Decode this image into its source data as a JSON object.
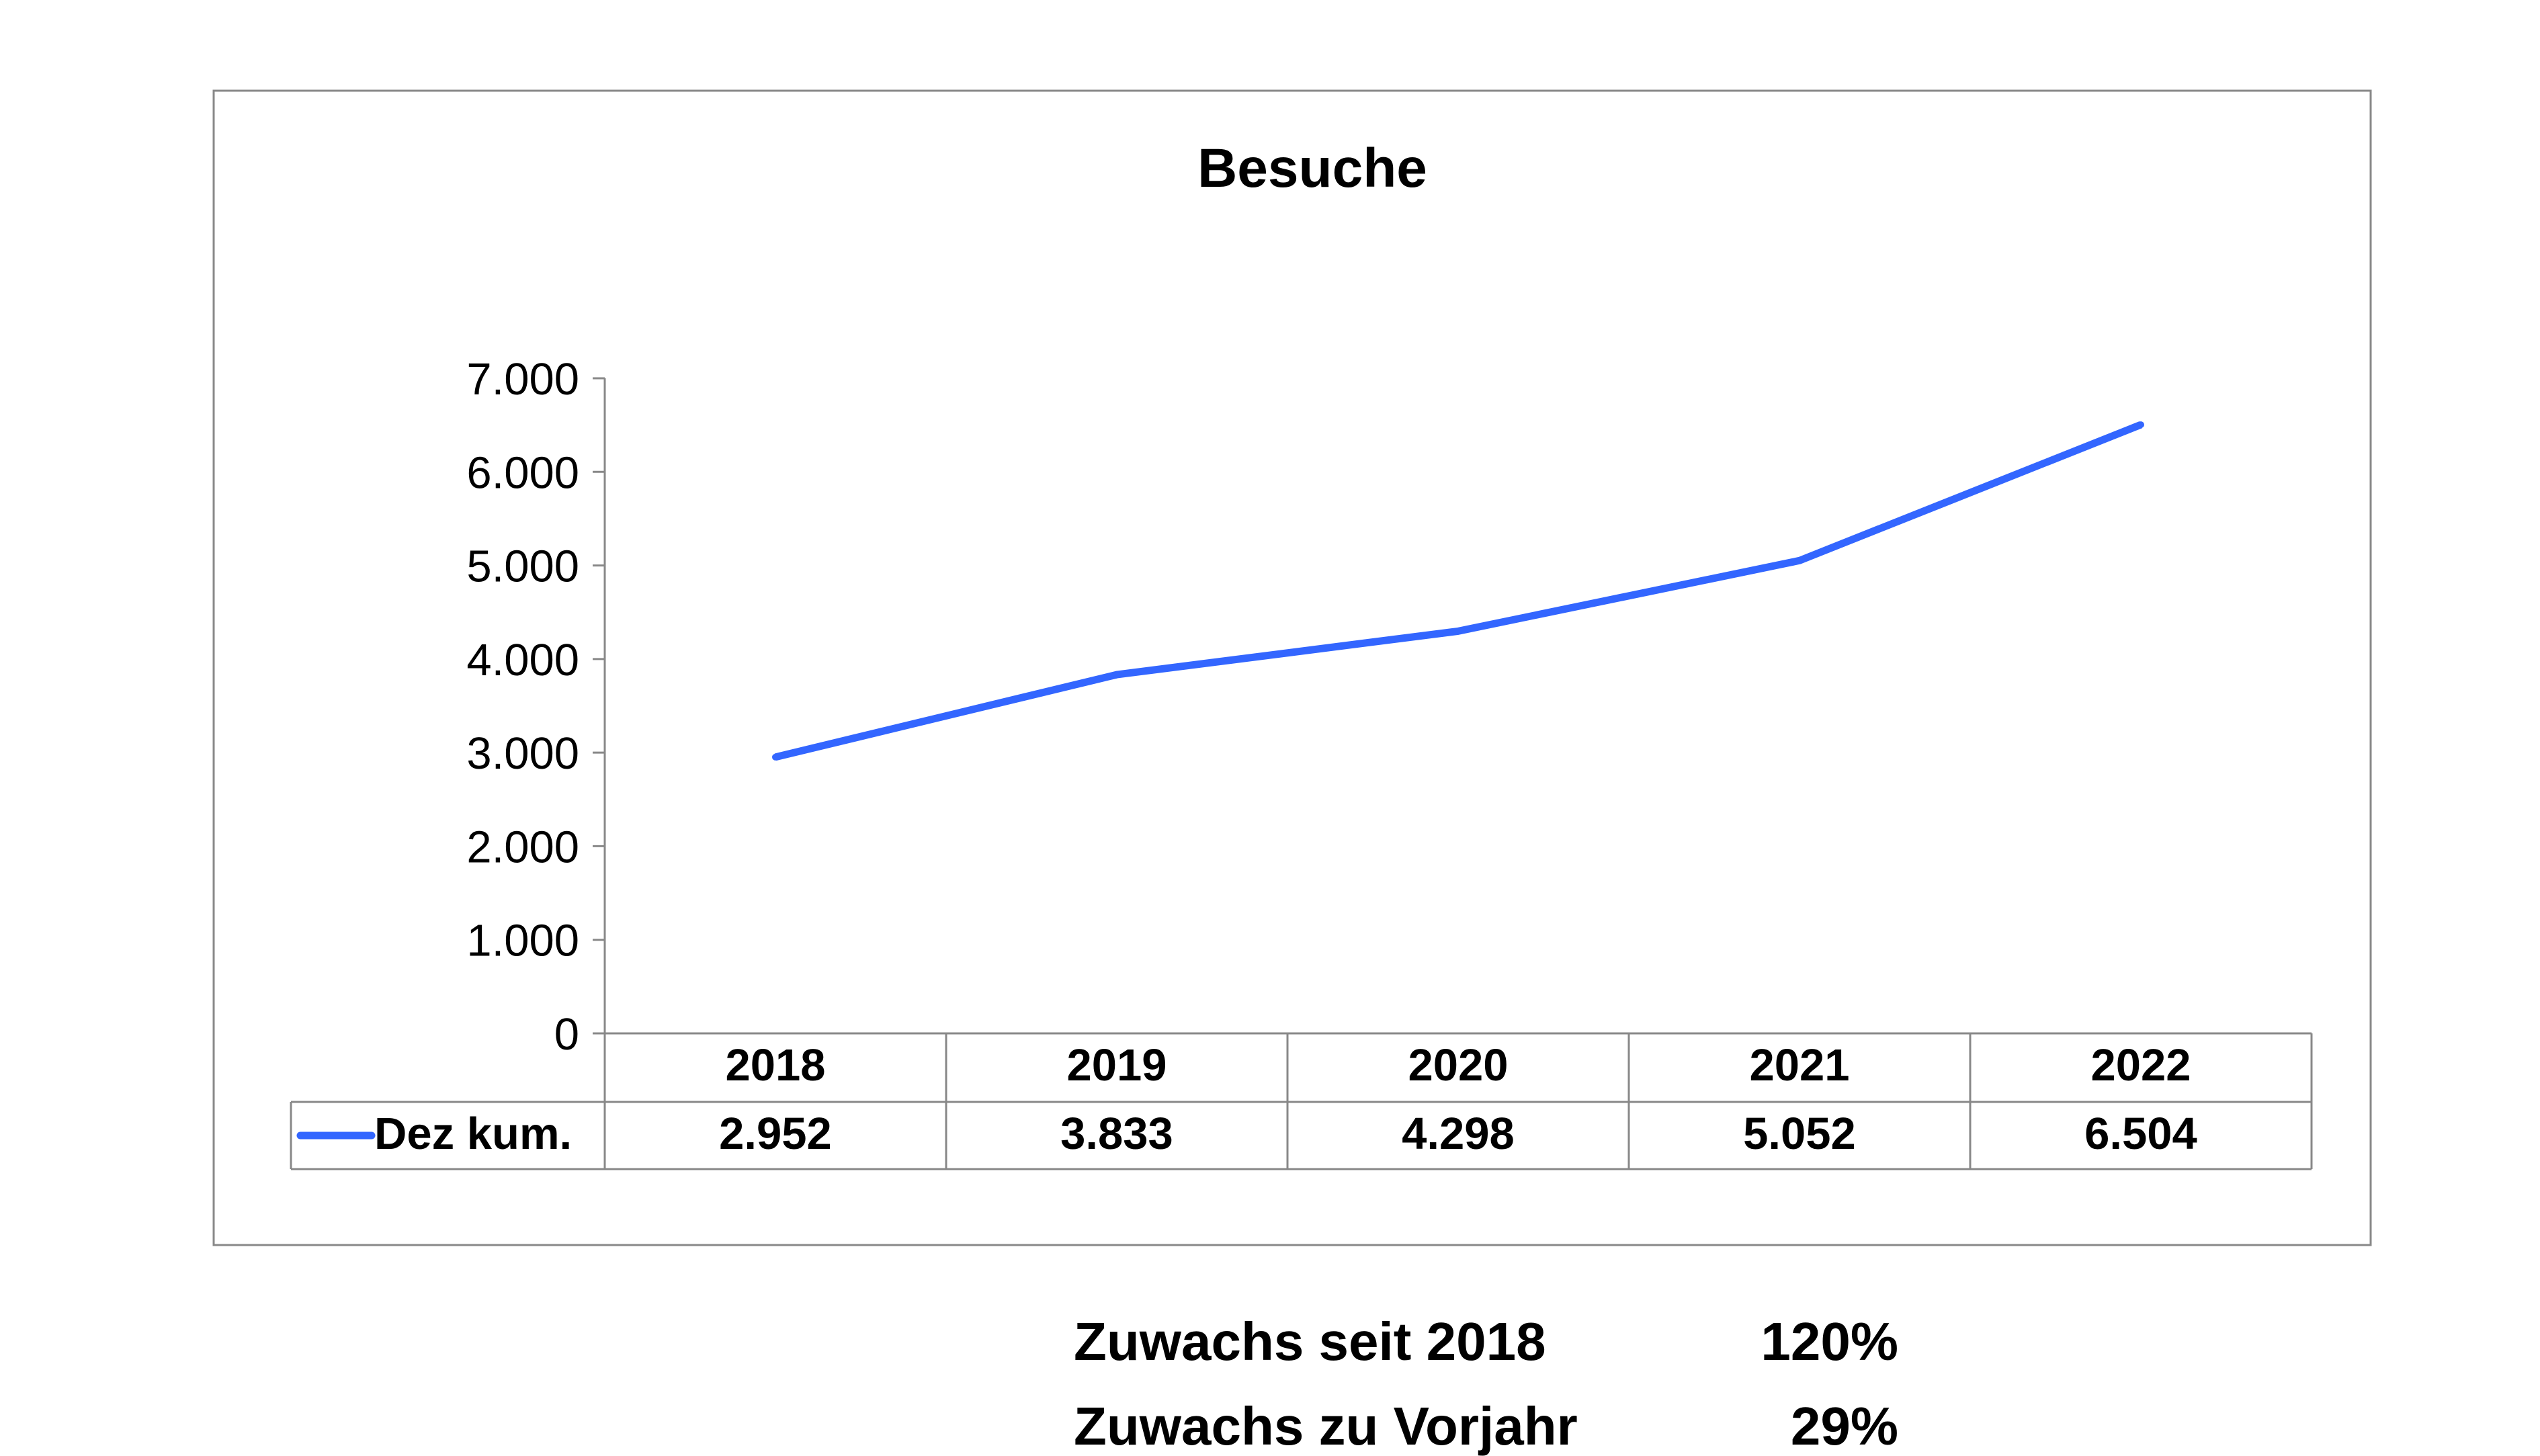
{
  "chart_data": {
    "type": "line",
    "title": "Besuche",
    "xlabel": "",
    "ylabel": "",
    "ylim": [
      0,
      7000
    ],
    "y_ticks": [
      "0",
      "1.000",
      "2.000",
      "3.000",
      "4.000",
      "5.000",
      "6.000",
      "7.000"
    ],
    "y_tick_values": [
      0,
      1000,
      2000,
      3000,
      4000,
      5000,
      6000,
      7000
    ],
    "categories": [
      "2018",
      "2019",
      "2020",
      "2021",
      "2022"
    ],
    "series": [
      {
        "name": "Dez kum.",
        "values": [
          2952,
          3833,
          4298,
          5052,
          6504
        ],
        "value_labels": [
          "2.952",
          "3.833",
          "4.298",
          "5.052",
          "6.504"
        ],
        "color": "#3366ff"
      }
    ],
    "grid": false,
    "legend_placement": "data-table-left",
    "data_table": true
  },
  "summary": {
    "rows": [
      {
        "label": "Zuwachs seit 2018",
        "value": "120%"
      },
      {
        "label": "Zuwachs zu Vorjahr",
        "value": "29%"
      }
    ]
  },
  "colors": {
    "line": "#3366ff",
    "frame": "#888888",
    "axis": "#888888",
    "text": "#000000"
  }
}
